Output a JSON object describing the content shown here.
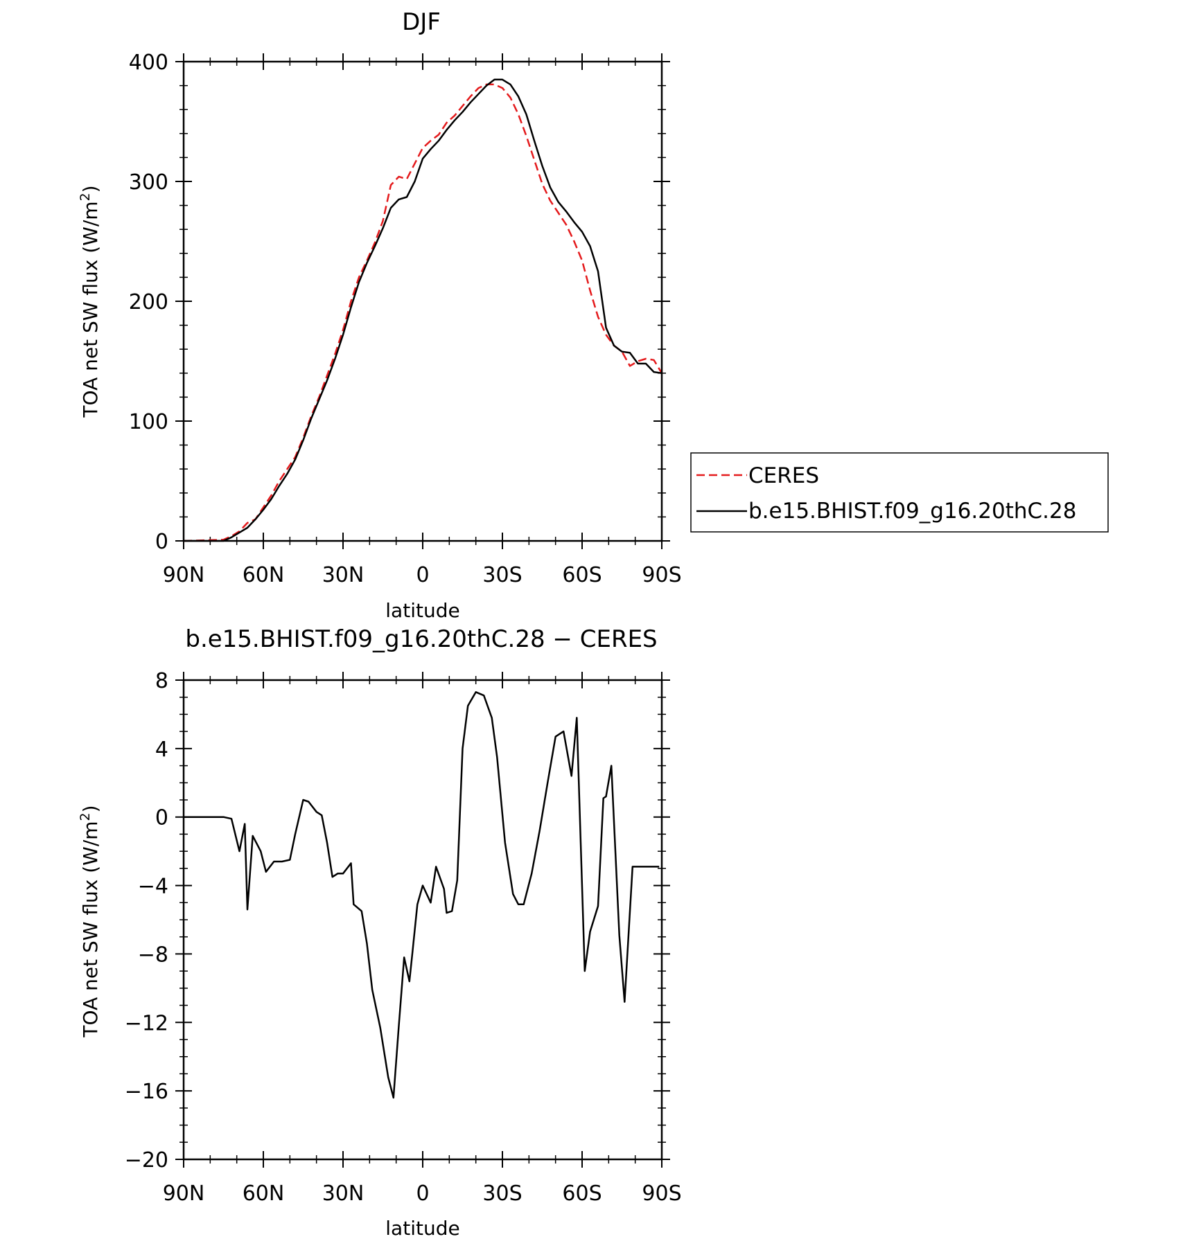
{
  "chart_data": [
    {
      "type": "line",
      "title": "DJF",
      "xlabel": "latitude",
      "ylabel": "TOA net SW flux (W/m²)",
      "ylabel_main": "TOA net SW flux (W/m",
      "ylabel_sup": "2",
      "ylabel_close": ")",
      "xlim": [
        -90,
        90
      ],
      "ylim": [
        0,
        400
      ],
      "x_ticks": [
        -90,
        -60,
        -30,
        0,
        30,
        60,
        90
      ],
      "x_tick_labels": [
        "90N",
        "60N",
        "30N",
        "0",
        "30S",
        "60S",
        "90S"
      ],
      "y_ticks": [
        0,
        100,
        200,
        300,
        400
      ],
      "y_tick_labels": [
        "0",
        "100",
        "200",
        "300",
        "400"
      ],
      "legend": {
        "placement": "right",
        "entries": [
          "CERES",
          "b.e15.BHIST.f09_g16.20thC.28"
        ]
      },
      "series": [
        {
          "name": "CERES",
          "color": "#e41a1c",
          "dash": true,
          "x": [
            -90,
            -75,
            -72,
            -69,
            -66,
            -63,
            -60,
            -57,
            -54,
            -51,
            -48,
            -45,
            -42,
            -39,
            -36,
            -33,
            -30,
            -27,
            -24,
            -21,
            -18,
            -15,
            -12,
            -9,
            -6,
            -3,
            0,
            3,
            6,
            9,
            12,
            15,
            18,
            21,
            24,
            27,
            30,
            33,
            36,
            39,
            42,
            45,
            48,
            51,
            54,
            57,
            60,
            63,
            66,
            69,
            72,
            75,
            78,
            81,
            84,
            87,
            90
          ],
          "y": [
            0,
            1,
            4,
            8,
            15,
            18,
            28,
            38,
            50,
            60,
            70,
            86,
            104,
            120,
            138,
            156,
            176,
            200,
            220,
            234,
            249,
            267,
            297,
            304,
            302,
            315,
            328,
            334,
            339,
            349,
            355,
            363,
            371,
            378,
            381,
            381,
            378,
            370,
            356,
            338,
            318,
            298,
            284,
            274,
            264,
            250,
            234,
            209,
            187,
            172,
            163,
            158,
            146,
            150,
            152,
            151,
            140
          ]
        },
        {
          "name": "b.e15.BHIST.f09_g16.20thC.28",
          "color": "#000000",
          "dash": false,
          "x": [
            -90,
            -75,
            -72,
            -69,
            -66,
            -63,
            -60,
            -57,
            -54,
            -51,
            -48,
            -45,
            -42,
            -39,
            -36,
            -33,
            -30,
            -27,
            -24,
            -21,
            -18,
            -15,
            -12,
            -9,
            -6,
            -3,
            0,
            3,
            6,
            9,
            12,
            15,
            18,
            21,
            24,
            27,
            30,
            33,
            36,
            39,
            42,
            45,
            48,
            51,
            54,
            57,
            60,
            63,
            66,
            69,
            72,
            75,
            78,
            81,
            84,
            87,
            90
          ],
          "y": [
            0,
            0,
            3,
            7,
            11,
            18,
            26,
            35,
            46,
            56,
            68,
            84,
            102,
            118,
            134,
            152,
            172,
            195,
            216,
            232,
            246,
            261,
            278,
            285,
            287,
            300,
            319,
            327,
            334,
            343,
            351,
            358,
            366,
            373,
            380,
            385,
            385,
            381,
            371,
            356,
            334,
            313,
            295,
            283,
            275,
            266,
            258,
            246,
            225,
            178,
            163,
            158,
            157,
            148,
            148,
            141,
            140
          ]
        }
      ]
    },
    {
      "type": "line",
      "title": "b.e15.BHIST.f09_g16.20thC.28 − CERES",
      "xlabel": "latitude",
      "ylabel": "TOA net SW flux (W/m²)",
      "ylabel_main": "TOA net SW flux (W/m",
      "ylabel_sup": "2",
      "ylabel_close": ")",
      "xlim": [
        -90,
        90
      ],
      "ylim": [
        -20,
        8
      ],
      "x_ticks": [
        -90,
        -60,
        -30,
        0,
        30,
        60,
        90
      ],
      "x_tick_labels": [
        "90N",
        "60N",
        "30N",
        "0",
        "30S",
        "60S",
        "90S"
      ],
      "y_ticks": [
        -20,
        -16,
        -12,
        -8,
        -4,
        0,
        4,
        8
      ],
      "y_tick_labels": [
        "−20",
        "−16",
        "−12",
        "−8",
        "−4",
        "0",
        "4",
        "8"
      ],
      "series": [
        {
          "color": "#000000",
          "dash": false,
          "x": [
            -90,
            -78,
            -75,
            -72,
            -69,
            -67,
            -66,
            -64,
            -61,
            -59,
            -56,
            -53,
            -50,
            -48,
            -45,
            -43,
            -40,
            -38,
            -36,
            -34,
            -32,
            -30,
            -27,
            -26,
            -23,
            -21,
            -19,
            -16,
            -13,
            -11,
            -9,
            -7,
            -5,
            -4,
            -2,
            0,
            3,
            5,
            8,
            9,
            11,
            13,
            15,
            17,
            20,
            23,
            26,
            28,
            31,
            34,
            36,
            38,
            41,
            44,
            47,
            50,
            53,
            56,
            58,
            61,
            63,
            66,
            68,
            69,
            71,
            74,
            76,
            79,
            81,
            84,
            87,
            89
          ],
          "y": [
            0,
            0,
            0,
            -0.1,
            -2.0,
            -0.4,
            -5.4,
            -1.1,
            -2.0,
            -3.2,
            -2.6,
            -2.6,
            -2.5,
            -1.0,
            1.0,
            0.9,
            0.3,
            0.1,
            -1.5,
            -3.5,
            -3.3,
            -3.3,
            -2.7,
            -5.1,
            -5.5,
            -7.4,
            -10.1,
            -12.3,
            -15.2,
            -16.4,
            -12.2,
            -8.2,
            -9.6,
            -8.1,
            -5.1,
            -4.0,
            -5.0,
            -2.9,
            -4.2,
            -5.6,
            -5.5,
            -3.7,
            4.0,
            6.5,
            7.3,
            7.1,
            5.8,
            3.5,
            -1.5,
            -4.5,
            -5.1,
            -5.1,
            -3.3,
            -0.8,
            2.0,
            4.7,
            5.0,
            2.4,
            5.8,
            -9.0,
            -6.7,
            -5.2,
            1.1,
            1.2,
            3.0,
            -6.9,
            -10.8,
            -2.9,
            -2.9,
            -2.9,
            -2.9,
            -2.9
          ]
        }
      ]
    }
  ]
}
